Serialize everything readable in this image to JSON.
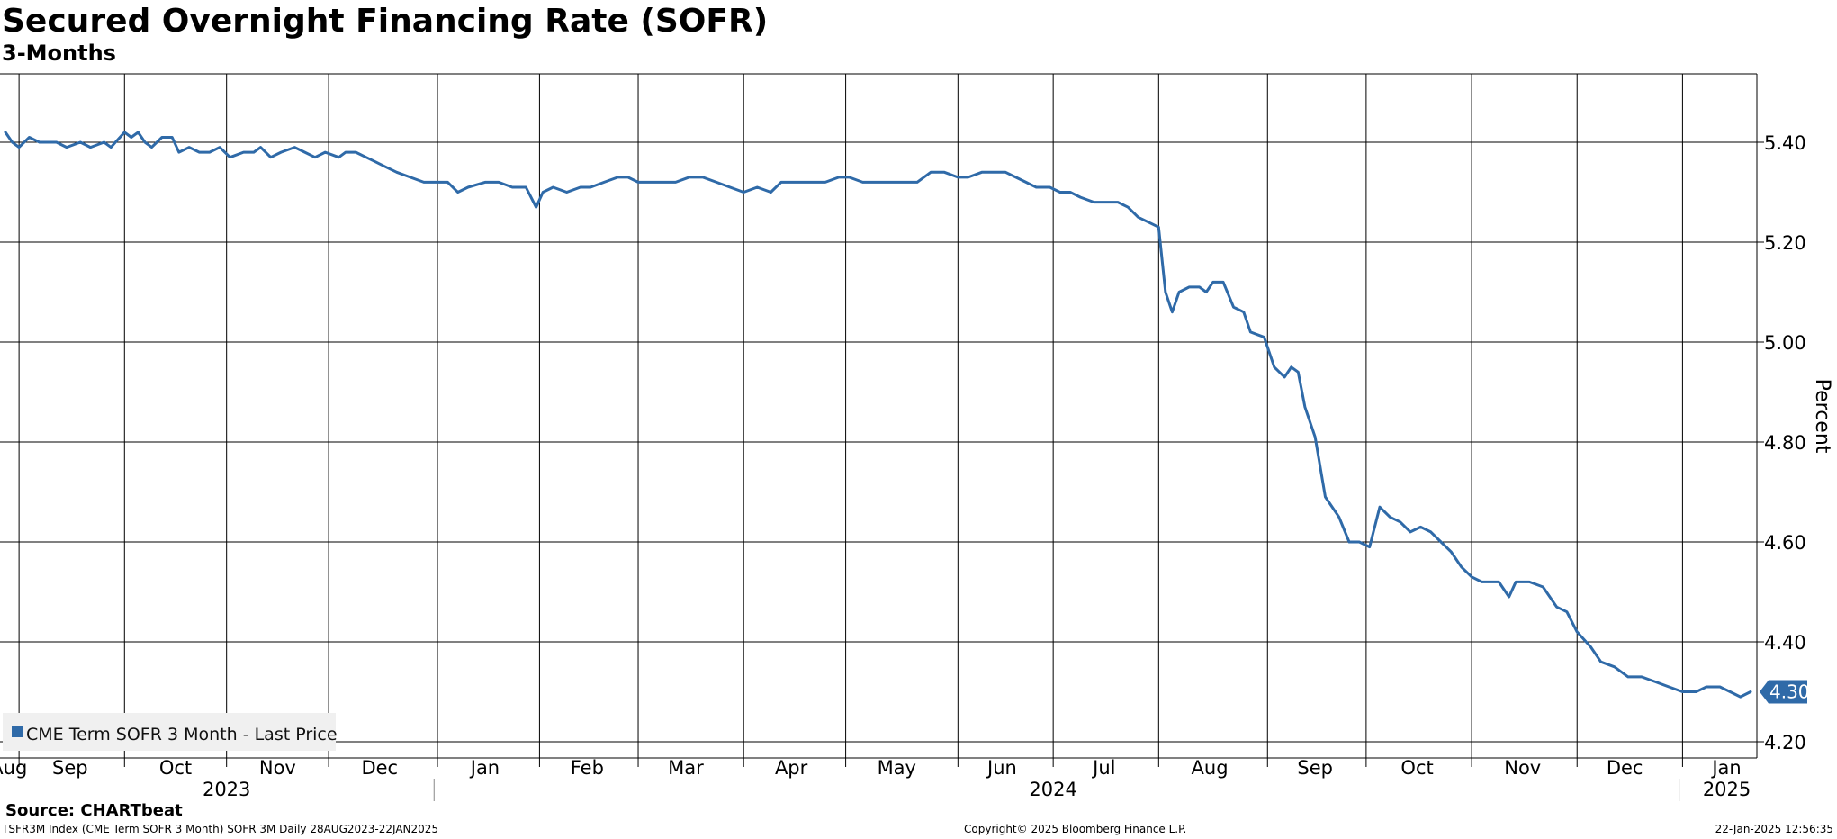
{
  "header": {
    "title": "Secured Overnight Financing Rate (SOFR)",
    "subtitle": "3-Months"
  },
  "footer": {
    "source": "Source: CHARTbeat",
    "left": "TSFR3M Index (CME Term SOFR 3 Month) SOFR 3M  Daily 28AUG2023-22JAN2025",
    "center": "Copyright© 2025 Bloomberg Finance L.P.",
    "right": "22-Jan-2025 12:56:35"
  },
  "colors": {
    "series": "#2f6aa8",
    "grid": "#000000",
    "legend_bg": "#f0f0f0"
  },
  "chart_data": {
    "type": "line",
    "ylabel": "Percent",
    "ylim": [
      4.17,
      5.54
    ],
    "xlim": [
      "2023-08-28",
      "2025-01-22"
    ],
    "grid": true,
    "legend_position": "bottom-left",
    "yticks": [
      {
        "value": 5.4,
        "label": "5.40"
      },
      {
        "value": 5.2,
        "label": "5.20"
      },
      {
        "value": 5.0,
        "label": "5.00"
      },
      {
        "value": 4.8,
        "label": "4.80"
      },
      {
        "value": 4.6,
        "label": "4.60"
      },
      {
        "value": 4.4,
        "label": "4.40"
      },
      {
        "value": 4.2,
        "label": "4.20"
      }
    ],
    "month_gridlines": [
      "2023-09-01",
      "2023-10-02",
      "2023-11-01",
      "2023-12-01",
      "2024-01-02",
      "2024-02-01",
      "2024-03-01",
      "2024-04-01",
      "2024-05-01",
      "2024-06-03",
      "2024-07-01",
      "2024-08-01",
      "2024-09-02",
      "2024-10-01",
      "2024-11-01",
      "2024-12-02",
      "2025-01-02"
    ],
    "month_labels": [
      {
        "label": "Aug",
        "date": "2023-08-29"
      },
      {
        "label": "Sep",
        "date": "2023-09-16"
      },
      {
        "label": "Oct",
        "date": "2023-10-17"
      },
      {
        "label": "Nov",
        "date": "2023-11-16"
      },
      {
        "label": "Dec",
        "date": "2023-12-16"
      },
      {
        "label": "Jan",
        "date": "2024-01-16"
      },
      {
        "label": "Feb",
        "date": "2024-02-15"
      },
      {
        "label": "Mar",
        "date": "2024-03-15"
      },
      {
        "label": "Apr",
        "date": "2024-04-15"
      },
      {
        "label": "May",
        "date": "2024-05-16"
      },
      {
        "label": "Jun",
        "date": "2024-06-16"
      },
      {
        "label": "Jul",
        "date": "2024-07-16"
      },
      {
        "label": "Aug",
        "date": "2024-08-16"
      },
      {
        "label": "Sep",
        "date": "2024-09-16"
      },
      {
        "label": "Oct",
        "date": "2024-10-16"
      },
      {
        "label": "Nov",
        "date": "2024-11-16"
      },
      {
        "label": "Dec",
        "date": "2024-12-16"
      },
      {
        "label": "Jan",
        "date": "2025-01-15"
      }
    ],
    "year_labels": [
      {
        "label": "2023",
        "date": "2023-11-01"
      },
      {
        "label": "2024",
        "date": "2024-07-01"
      },
      {
        "label": "2025",
        "date": "2025-01-15"
      }
    ],
    "year_dividers": [
      "2024-01-01",
      "2025-01-01"
    ],
    "last_value": "4.30",
    "series": [
      {
        "name": "CME Term SOFR 3 Month - Last Price",
        "points": [
          [
            "2023-08-28",
            5.42
          ],
          [
            "2023-08-30",
            5.4
          ],
          [
            "2023-09-01",
            5.39
          ],
          [
            "2023-09-04",
            5.41
          ],
          [
            "2023-09-07",
            5.4
          ],
          [
            "2023-09-12",
            5.4
          ],
          [
            "2023-09-15",
            5.39
          ],
          [
            "2023-09-19",
            5.4
          ],
          [
            "2023-09-22",
            5.39
          ],
          [
            "2023-09-26",
            5.4
          ],
          [
            "2023-09-28",
            5.39
          ],
          [
            "2023-10-02",
            5.42
          ],
          [
            "2023-10-04",
            5.41
          ],
          [
            "2023-10-06",
            5.42
          ],
          [
            "2023-10-08",
            5.4
          ],
          [
            "2023-10-10",
            5.39
          ],
          [
            "2023-10-13",
            5.41
          ],
          [
            "2023-10-16",
            5.41
          ],
          [
            "2023-10-18",
            5.38
          ],
          [
            "2023-10-21",
            5.39
          ],
          [
            "2023-10-24",
            5.38
          ],
          [
            "2023-10-27",
            5.38
          ],
          [
            "2023-10-30",
            5.39
          ],
          [
            "2023-11-02",
            5.37
          ],
          [
            "2023-11-06",
            5.38
          ],
          [
            "2023-11-09",
            5.38
          ],
          [
            "2023-11-11",
            5.39
          ],
          [
            "2023-11-14",
            5.37
          ],
          [
            "2023-11-17",
            5.38
          ],
          [
            "2023-11-21",
            5.39
          ],
          [
            "2023-11-24",
            5.38
          ],
          [
            "2023-11-27",
            5.37
          ],
          [
            "2023-11-30",
            5.38
          ],
          [
            "2023-12-04",
            5.37
          ],
          [
            "2023-12-06",
            5.38
          ],
          [
            "2023-12-09",
            5.38
          ],
          [
            "2023-12-12",
            5.37
          ],
          [
            "2023-12-15",
            5.36
          ],
          [
            "2023-12-18",
            5.35
          ],
          [
            "2023-12-21",
            5.34
          ],
          [
            "2023-12-25",
            5.33
          ],
          [
            "2023-12-29",
            5.32
          ],
          [
            "2024-01-02",
            5.32
          ],
          [
            "2024-01-05",
            5.32
          ],
          [
            "2024-01-08",
            5.3
          ],
          [
            "2024-01-11",
            5.31
          ],
          [
            "2024-01-16",
            5.32
          ],
          [
            "2024-01-20",
            5.32
          ],
          [
            "2024-01-24",
            5.31
          ],
          [
            "2024-01-28",
            5.31
          ],
          [
            "2024-01-31",
            5.27
          ],
          [
            "2024-02-02",
            5.3
          ],
          [
            "2024-02-05",
            5.31
          ],
          [
            "2024-02-09",
            5.3
          ],
          [
            "2024-02-13",
            5.31
          ],
          [
            "2024-02-16",
            5.31
          ],
          [
            "2024-02-20",
            5.32
          ],
          [
            "2024-02-24",
            5.33
          ],
          [
            "2024-02-27",
            5.33
          ],
          [
            "2024-03-01",
            5.32
          ],
          [
            "2024-03-05",
            5.32
          ],
          [
            "2024-03-09",
            5.32
          ],
          [
            "2024-03-12",
            5.32
          ],
          [
            "2024-03-16",
            5.33
          ],
          [
            "2024-03-20",
            5.33
          ],
          [
            "2024-03-24",
            5.32
          ],
          [
            "2024-03-28",
            5.31
          ],
          [
            "2024-04-01",
            5.3
          ],
          [
            "2024-04-05",
            5.31
          ],
          [
            "2024-04-09",
            5.3
          ],
          [
            "2024-04-12",
            5.32
          ],
          [
            "2024-04-15",
            5.32
          ],
          [
            "2024-04-18",
            5.32
          ],
          [
            "2024-04-21",
            5.32
          ],
          [
            "2024-04-25",
            5.32
          ],
          [
            "2024-04-29",
            5.33
          ],
          [
            "2024-05-02",
            5.33
          ],
          [
            "2024-05-06",
            5.32
          ],
          [
            "2024-05-10",
            5.32
          ],
          [
            "2024-05-14",
            5.32
          ],
          [
            "2024-05-18",
            5.32
          ],
          [
            "2024-05-22",
            5.32
          ],
          [
            "2024-05-26",
            5.34
          ],
          [
            "2024-05-30",
            5.34
          ],
          [
            "2024-06-03",
            5.33
          ],
          [
            "2024-06-06",
            5.33
          ],
          [
            "2024-06-10",
            5.34
          ],
          [
            "2024-06-13",
            5.34
          ],
          [
            "2024-06-17",
            5.34
          ],
          [
            "2024-06-20",
            5.33
          ],
          [
            "2024-06-23",
            5.32
          ],
          [
            "2024-06-26",
            5.31
          ],
          [
            "2024-06-30",
            5.31
          ],
          [
            "2024-07-03",
            5.3
          ],
          [
            "2024-07-06",
            5.3
          ],
          [
            "2024-07-09",
            5.29
          ],
          [
            "2024-07-13",
            5.28
          ],
          [
            "2024-07-17",
            5.28
          ],
          [
            "2024-07-20",
            5.28
          ],
          [
            "2024-07-23",
            5.27
          ],
          [
            "2024-07-26",
            5.25
          ],
          [
            "2024-07-29",
            5.24
          ],
          [
            "2024-08-01",
            5.23
          ],
          [
            "2024-08-03",
            5.1
          ],
          [
            "2024-08-05",
            5.06
          ],
          [
            "2024-08-07",
            5.1
          ],
          [
            "2024-08-10",
            5.11
          ],
          [
            "2024-08-13",
            5.11
          ],
          [
            "2024-08-15",
            5.1
          ],
          [
            "2024-08-17",
            5.12
          ],
          [
            "2024-08-20",
            5.12
          ],
          [
            "2024-08-23",
            5.07
          ],
          [
            "2024-08-26",
            5.06
          ],
          [
            "2024-08-28",
            5.02
          ],
          [
            "2024-09-01",
            5.01
          ],
          [
            "2024-09-04",
            4.95
          ],
          [
            "2024-09-07",
            4.93
          ],
          [
            "2024-09-09",
            4.95
          ],
          [
            "2024-09-11",
            4.94
          ],
          [
            "2024-09-13",
            4.87
          ],
          [
            "2024-09-16",
            4.81
          ],
          [
            "2024-09-19",
            4.69
          ],
          [
            "2024-09-23",
            4.65
          ],
          [
            "2024-09-26",
            4.6
          ],
          [
            "2024-09-29",
            4.6
          ],
          [
            "2024-10-02",
            4.59
          ],
          [
            "2024-10-05",
            4.67
          ],
          [
            "2024-10-08",
            4.65
          ],
          [
            "2024-10-11",
            4.64
          ],
          [
            "2024-10-14",
            4.62
          ],
          [
            "2024-10-17",
            4.63
          ],
          [
            "2024-10-20",
            4.62
          ],
          [
            "2024-10-23",
            4.6
          ],
          [
            "2024-10-26",
            4.58
          ],
          [
            "2024-10-29",
            4.55
          ],
          [
            "2024-11-01",
            4.53
          ],
          [
            "2024-11-04",
            4.52
          ],
          [
            "2024-11-07",
            4.52
          ],
          [
            "2024-11-09",
            4.52
          ],
          [
            "2024-11-12",
            4.49
          ],
          [
            "2024-11-14",
            4.52
          ],
          [
            "2024-11-18",
            4.52
          ],
          [
            "2024-11-22",
            4.51
          ],
          [
            "2024-11-26",
            4.47
          ],
          [
            "2024-11-29",
            4.46
          ],
          [
            "2024-12-02",
            4.42
          ],
          [
            "2024-12-06",
            4.39
          ],
          [
            "2024-12-09",
            4.36
          ],
          [
            "2024-12-13",
            4.35
          ],
          [
            "2024-12-17",
            4.33
          ],
          [
            "2024-12-21",
            4.33
          ],
          [
            "2024-12-25",
            4.32
          ],
          [
            "2024-12-29",
            4.31
          ],
          [
            "2025-01-02",
            4.3
          ],
          [
            "2025-01-06",
            4.3
          ],
          [
            "2025-01-09",
            4.31
          ],
          [
            "2025-01-13",
            4.31
          ],
          [
            "2025-01-16",
            4.3
          ],
          [
            "2025-01-19",
            4.29
          ],
          [
            "2025-01-22",
            4.3
          ]
        ]
      }
    ]
  }
}
